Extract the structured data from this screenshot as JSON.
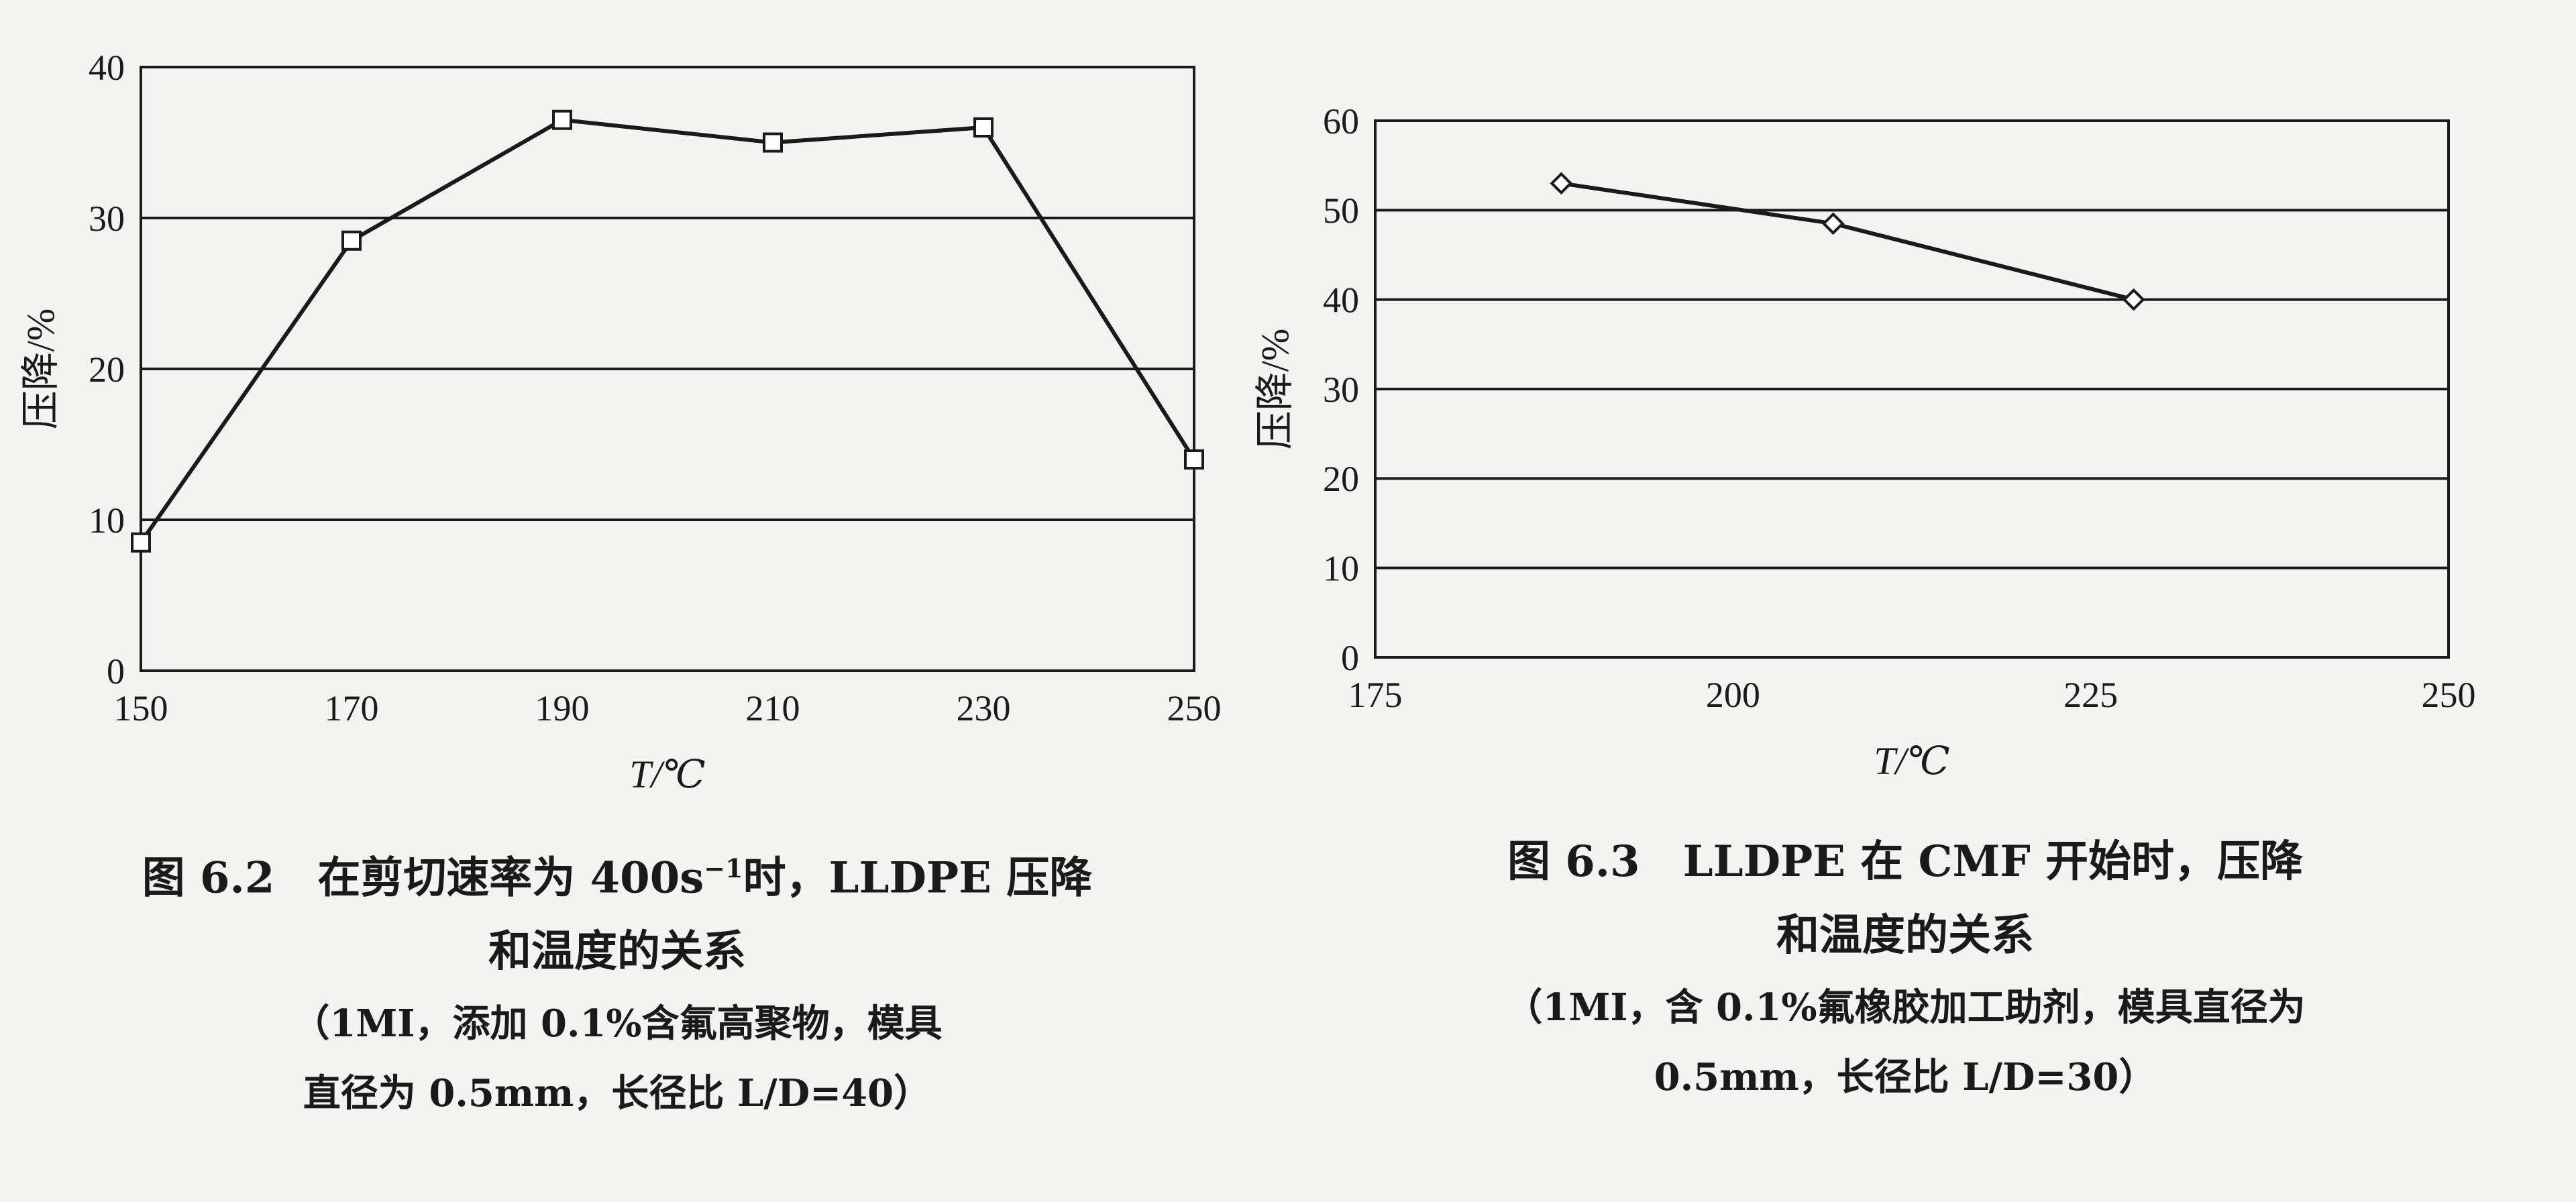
{
  "chart_data": [
    {
      "type": "line",
      "xlabel": "T/℃",
      "ylabel": "压降/%",
      "xlim": [
        150,
        250
      ],
      "ylim": [
        0,
        40
      ],
      "xticks": [
        150,
        170,
        190,
        210,
        230,
        250
      ],
      "yticks": [
        0,
        10,
        20,
        30,
        40
      ],
      "grid": "horizontal",
      "marker": "square",
      "x": [
        150,
        170,
        190,
        210,
        230,
        250
      ],
      "y": [
        8.5,
        28.5,
        36.5,
        35,
        36,
        14
      ],
      "caption": {
        "line1_prefix": "图 6.2　在剪切速率为 400s",
        "line1_sup": "−1",
        "line1_suffix": "时，LLDPE 压降",
        "line2": "和温度的关系",
        "note1": "（1MI，添加 0.1%含氟高聚物，模具",
        "note2": "直径为 0.5mm，长径比 L/D=40）"
      }
    },
    {
      "type": "line",
      "xlabel": "T/℃",
      "ylabel": "压降/%",
      "xlim": [
        175,
        250
      ],
      "ylim": [
        0,
        60
      ],
      "xticks": [
        175,
        200,
        225,
        250
      ],
      "yticks": [
        0,
        10,
        20,
        30,
        40,
        50,
        60
      ],
      "grid": "horizontal",
      "marker": "diamond",
      "x": [
        188,
        207,
        228
      ],
      "y": [
        53,
        48.5,
        40
      ],
      "caption": {
        "line1": "图 6.3　LLDPE 在 CMF 开始时，压降",
        "line2": "和温度的关系",
        "note1": "（1MI，含 0.1%氟橡胶加工助剂，模具直径为",
        "note2": "0.5mm，长径比 L/D=30）"
      }
    }
  ]
}
